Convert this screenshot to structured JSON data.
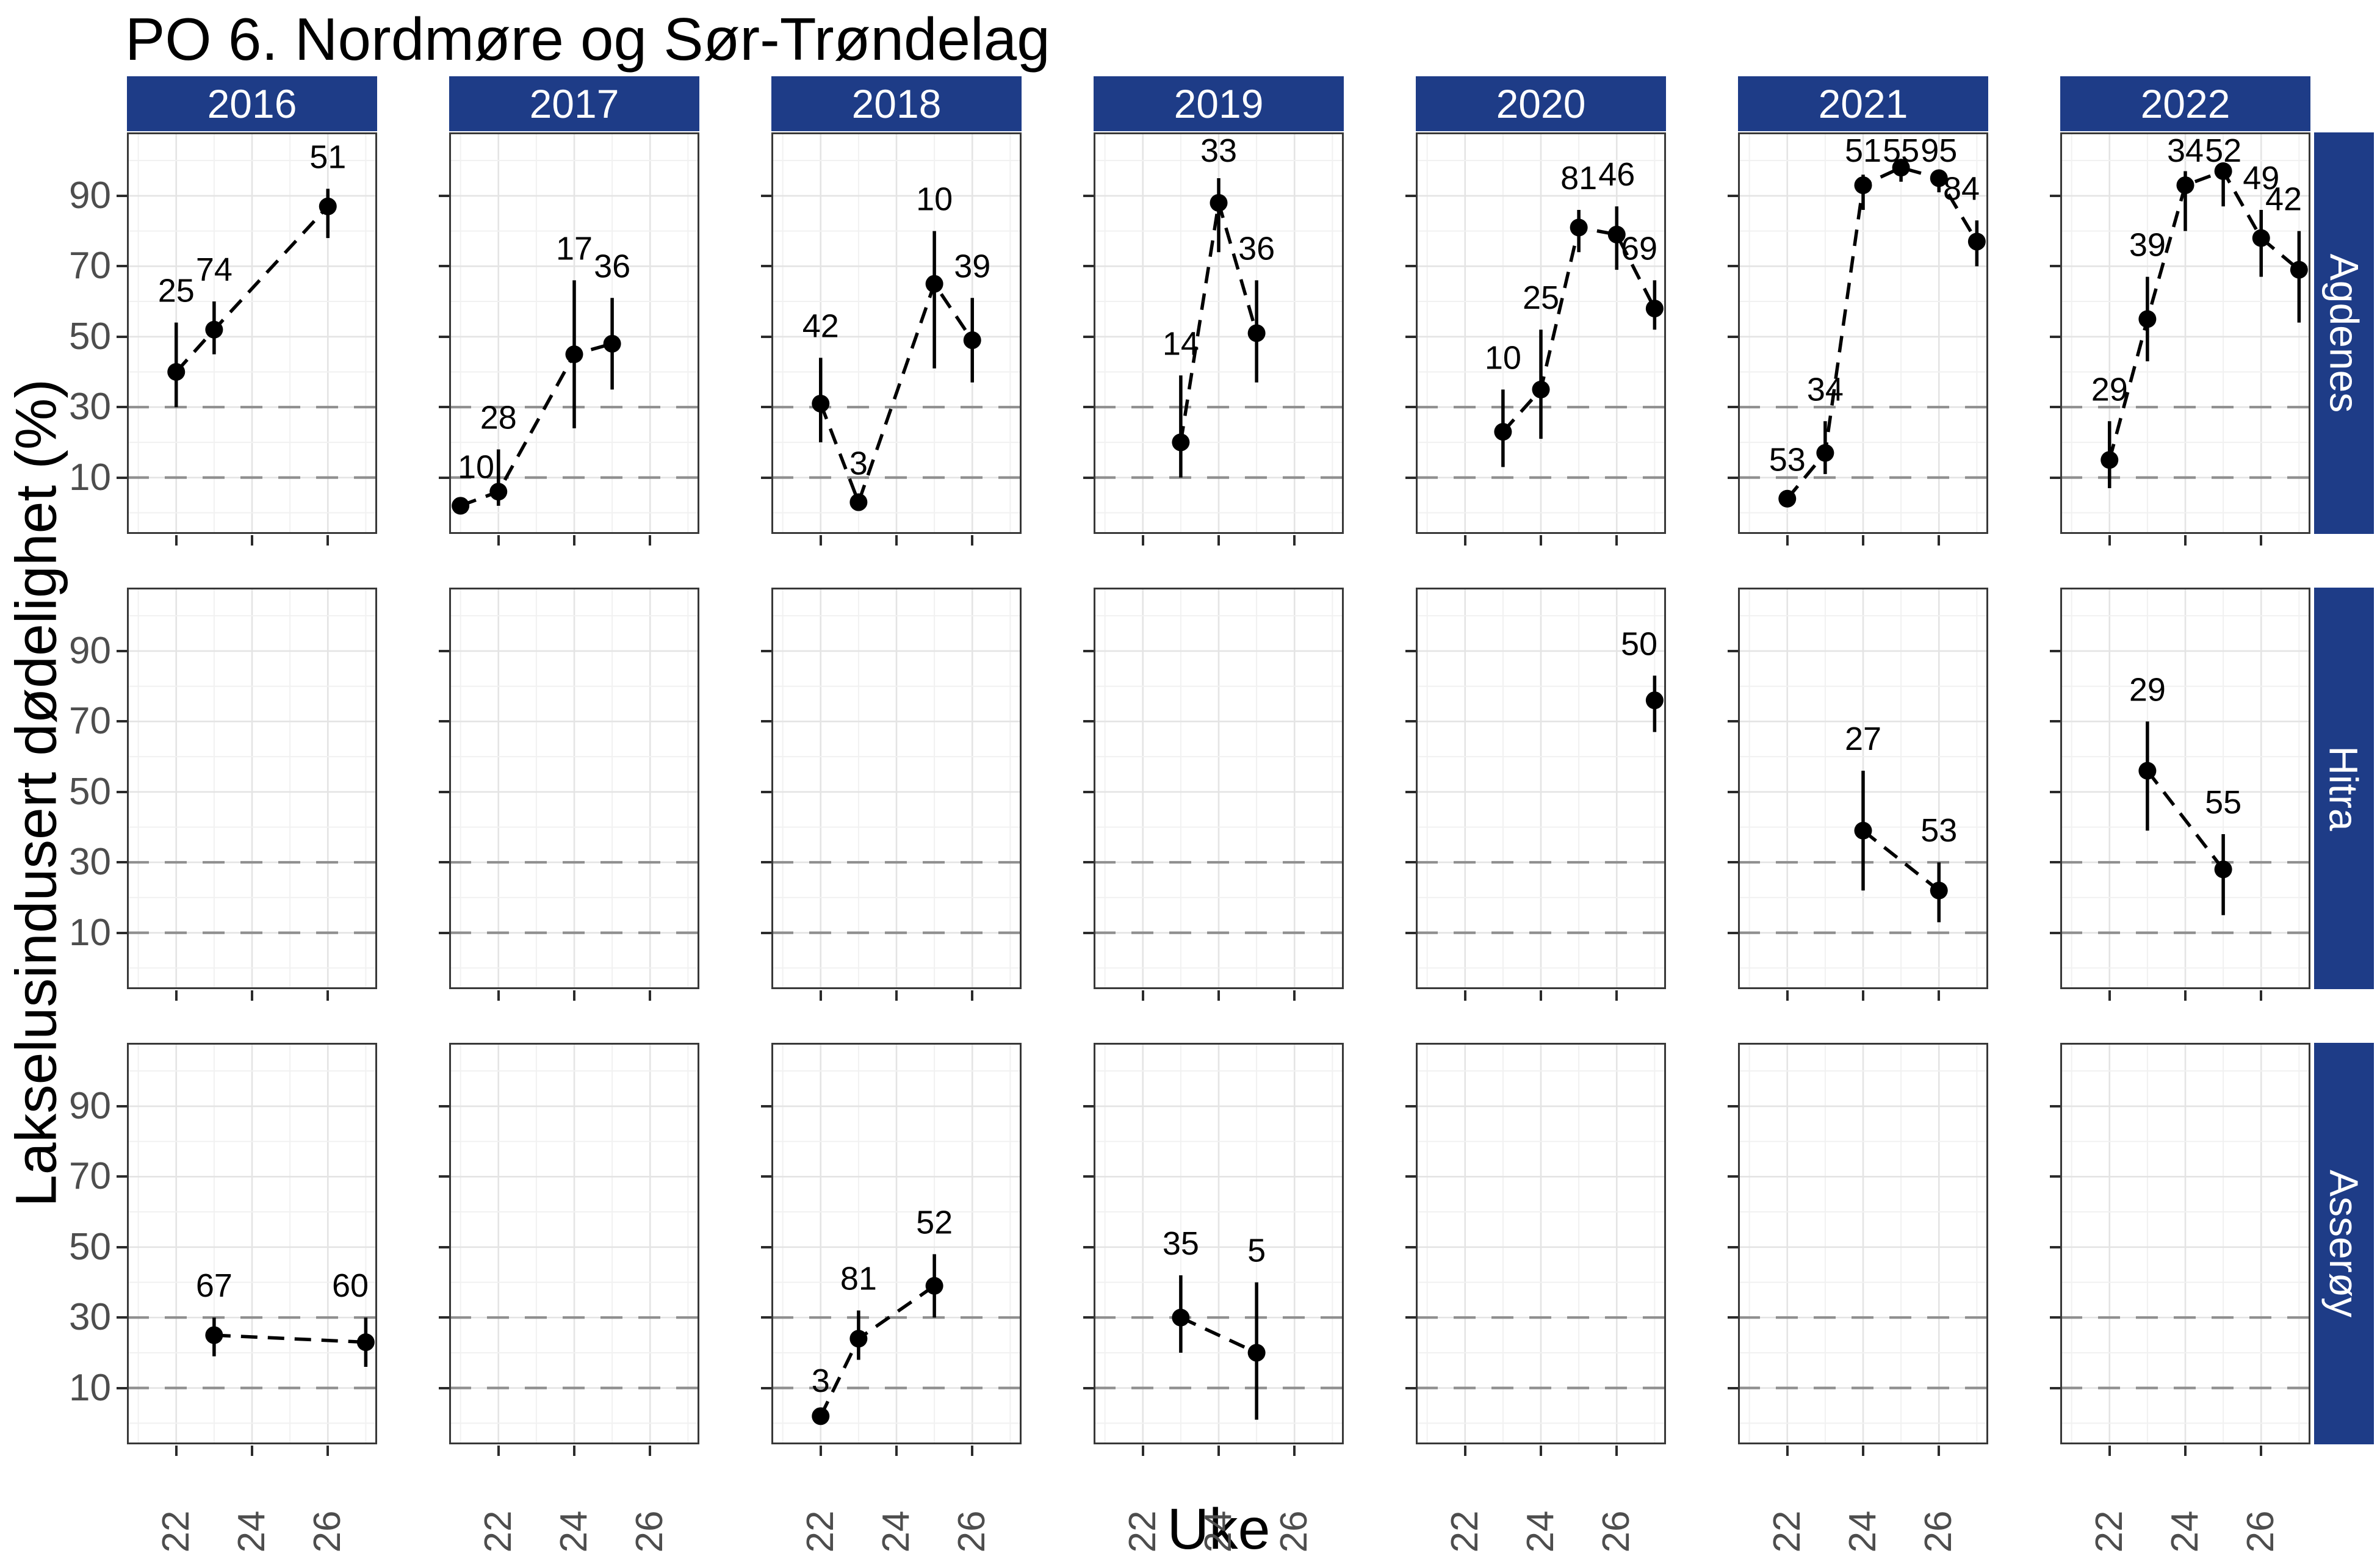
{
  "title": "PO 6. Nordmøre og Sør-Trøndelag",
  "colors": {
    "strip_fill": "#1e3c87",
    "strip_text": "#ffffff",
    "point": "#000000",
    "label_text": "#000000",
    "axis_text": "#4d4d4d",
    "axis_title": "#000000",
    "grid_major": "#e4e4e4",
    "grid_minor": "#f1f1f1",
    "ref_line": "#8f8f8f",
    "panel_border": "#383838",
    "background": "#ffffff"
  },
  "chart_data": {
    "type": "scatter",
    "title": "PO 6. Nordmøre og Sør-Trøndelag",
    "xlabel": "Uke",
    "ylabel": "Lakselusindusert dødelighet (%)",
    "col_facets": [
      "2016",
      "2017",
      "2018",
      "2019",
      "2020",
      "2021",
      "2022"
    ],
    "row_facets": [
      "Agdenes",
      "Hitra",
      "Asserøy"
    ],
    "x_ticks": [
      22,
      24,
      26
    ],
    "y_ticks": [
      90,
      70,
      50,
      30,
      10
    ],
    "x_domain": [
      20.7,
      27.3
    ],
    "y_domain": [
      -6,
      108
    ],
    "ref_lines": [
      30,
      10
    ],
    "grid": true,
    "legend": "none",
    "point_style": "filled-circle with vertical CI error bar, dashed connecting line, n-label above",
    "facets": [
      {
        "row": "Agdenes",
        "col": "2016",
        "points": [
          {
            "week": 22,
            "value": 40,
            "lo": 30,
            "hi": 54,
            "label": "25"
          },
          {
            "week": 23,
            "value": 52,
            "lo": 45,
            "hi": 60,
            "label": "74"
          },
          {
            "week": 26,
            "value": 87,
            "lo": 78,
            "hi": 92,
            "label": "51"
          }
        ]
      },
      {
        "row": "Agdenes",
        "col": "2017",
        "points": [
          {
            "week": 21,
            "value": 2,
            "lo": 1,
            "hi": 4,
            "label": "10"
          },
          {
            "week": 22,
            "value": 6,
            "lo": 2,
            "hi": 18,
            "label": "28"
          },
          {
            "week": 24,
            "value": 45,
            "lo": 24,
            "hi": 66,
            "label": "17"
          },
          {
            "week": 25,
            "value": 48,
            "lo": 35,
            "hi": 61,
            "label": "36"
          }
        ]
      },
      {
        "row": "Agdenes",
        "col": "2018",
        "points": [
          {
            "week": 22,
            "value": 31,
            "lo": 20,
            "hi": 44,
            "label": "42"
          },
          {
            "week": 23,
            "value": 3,
            "lo": 2,
            "hi": 5,
            "label": "3"
          },
          {
            "week": 25,
            "value": 65,
            "lo": 41,
            "hi": 80,
            "label": "10"
          },
          {
            "week": 26,
            "value": 49,
            "lo": 37,
            "hi": 61,
            "label": "39"
          }
        ]
      },
      {
        "row": "Agdenes",
        "col": "2019",
        "points": [
          {
            "week": 23,
            "value": 20,
            "lo": 10,
            "hi": 39,
            "label": "14"
          },
          {
            "week": 24,
            "value": 88,
            "lo": 74,
            "hi": 95,
            "label": "33"
          },
          {
            "week": 25,
            "value": 51,
            "lo": 37,
            "hi": 66,
            "label": "36"
          }
        ]
      },
      {
        "row": "Agdenes",
        "col": "2020",
        "points": [
          {
            "week": 23,
            "value": 23,
            "lo": 13,
            "hi": 35,
            "label": "10"
          },
          {
            "week": 24,
            "value": 35,
            "lo": 21,
            "hi": 52,
            "label": "25"
          },
          {
            "week": 25,
            "value": 81,
            "lo": 74,
            "hi": 86,
            "label": "81"
          },
          {
            "week": 26,
            "value": 79,
            "lo": 69,
            "hi": 87,
            "label": "46"
          },
          {
            "week": 27,
            "value": 58,
            "lo": 52,
            "hi": 66,
            "label": "69"
          }
        ]
      },
      {
        "row": "Agdenes",
        "col": "2021",
        "points": [
          {
            "week": 22,
            "value": 4,
            "lo": 3,
            "hi": 6,
            "label": "53"
          },
          {
            "week": 23,
            "value": 17,
            "lo": 11,
            "hi": 26,
            "label": "34"
          },
          {
            "week": 24,
            "value": 93,
            "lo": 86,
            "hi": 96,
            "label": "51"
          },
          {
            "week": 25,
            "value": 98,
            "lo": 94,
            "hi": 99,
            "label": "55"
          },
          {
            "week": 26,
            "value": 95,
            "lo": 91,
            "hi": 97,
            "label": "95"
          },
          {
            "week": 27,
            "value": 77,
            "lo": 70,
            "hi": 83,
            "label": "84"
          }
        ]
      },
      {
        "row": "Agdenes",
        "col": "2022",
        "points": [
          {
            "week": 22,
            "value": 15,
            "lo": 7,
            "hi": 26,
            "label": "29"
          },
          {
            "week": 23,
            "value": 55,
            "lo": 43,
            "hi": 67,
            "label": "39"
          },
          {
            "week": 24,
            "value": 93,
            "lo": 80,
            "hi": 97,
            "label": "34"
          },
          {
            "week": 25,
            "value": 97,
            "lo": 87,
            "hi": 99,
            "label": "52"
          },
          {
            "week": 26,
            "value": 78,
            "lo": 67,
            "hi": 86,
            "label": "49"
          },
          {
            "week": 27,
            "value": 69,
            "lo": 54,
            "hi": 80,
            "label": "42"
          }
        ]
      },
      {
        "row": "Hitra",
        "col": "2020",
        "points": [
          {
            "week": 27,
            "value": 76,
            "lo": 67,
            "hi": 83,
            "label": "50"
          }
        ]
      },
      {
        "row": "Hitra",
        "col": "2021",
        "points": [
          {
            "week": 24,
            "value": 39,
            "lo": 22,
            "hi": 56,
            "label": "27"
          },
          {
            "week": 26,
            "value": 22,
            "lo": 13,
            "hi": 30,
            "label": "53"
          }
        ]
      },
      {
        "row": "Hitra",
        "col": "2022",
        "points": [
          {
            "week": 23,
            "value": 56,
            "lo": 39,
            "hi": 70,
            "label": "29"
          },
          {
            "week": 25,
            "value": 28,
            "lo": 15,
            "hi": 38,
            "label": "55"
          }
        ]
      },
      {
        "row": "Asserøy",
        "col": "2016",
        "points": [
          {
            "week": 23,
            "value": 25,
            "lo": 19,
            "hi": 30,
            "label": "67"
          },
          {
            "week": 27,
            "value": 23,
            "lo": 16,
            "hi": 30,
            "label": "60"
          }
        ]
      },
      {
        "row": "Asserøy",
        "col": "2018",
        "points": [
          {
            "week": 22,
            "value": 2,
            "lo": 1,
            "hi": 3,
            "label": "3"
          },
          {
            "week": 23,
            "value": 24,
            "lo": 18,
            "hi": 32,
            "label": "81"
          },
          {
            "week": 25,
            "value": 39,
            "lo": 30,
            "hi": 48,
            "label": "52"
          }
        ]
      },
      {
        "row": "Asserøy",
        "col": "2019",
        "points": [
          {
            "week": 23,
            "value": 30,
            "lo": 20,
            "hi": 42,
            "label": "35"
          },
          {
            "week": 25,
            "value": 20,
            "lo": 1,
            "hi": 40,
            "label": "5"
          }
        ]
      }
    ]
  }
}
